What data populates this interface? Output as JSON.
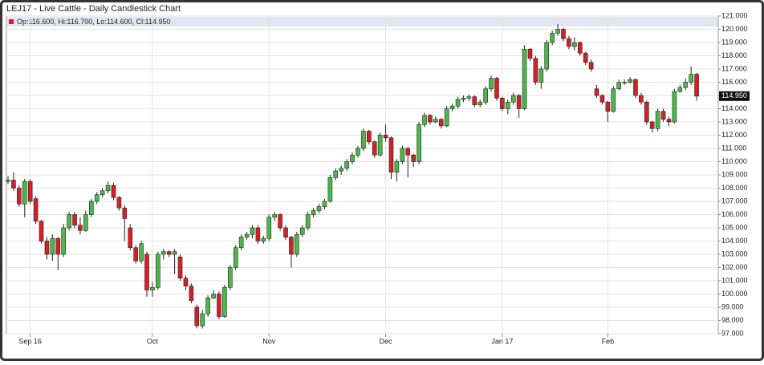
{
  "chart_data": {
    "type": "candlestick",
    "title": "LEJ17 - Live Cattle - Daily Candlestick Chart",
    "legend_text": "Op:116.600, Hi:116.700, Lo:114.600, Cl:114.950",
    "last_label": "114.950",
    "up_color": "#4cb848",
    "down_color": "#d62027",
    "grid": true,
    "categories": [
      null,
      null,
      null,
      null,
      "Sep 16",
      null,
      null,
      null,
      null,
      null,
      null,
      null,
      null,
      null,
      null,
      null,
      null,
      null,
      null,
      null,
      null,
      null,
      null,
      null,
      null,
      null,
      "Oct",
      null,
      null,
      null,
      null,
      null,
      null,
      null,
      null,
      null,
      null,
      null,
      null,
      null,
      null,
      null,
      null,
      null,
      null,
      null,
      null,
      "Nov",
      null,
      null,
      null,
      null,
      null,
      null,
      null,
      null,
      null,
      null,
      null,
      null,
      null,
      null,
      null,
      null,
      null,
      null,
      null,
      null,
      "Dec",
      null,
      null,
      null,
      null,
      null,
      null,
      null,
      null,
      null,
      null,
      null,
      null,
      null,
      null,
      null,
      null,
      null,
      null,
      null,
      null,
      "Jan 17",
      null,
      null,
      null,
      null,
      null,
      null,
      null,
      null,
      null,
      null,
      null,
      null,
      null,
      null,
      null,
      null,
      null,
      null,
      "Feb",
      null,
      null,
      null,
      null,
      null,
      null,
      null,
      null,
      null,
      null,
      null,
      null,
      null,
      null,
      null,
      null
    ],
    "open": [
      108.5,
      108.6,
      108.0,
      106.8,
      108.5,
      107.2,
      105.5,
      104.0,
      103.0,
      104.2,
      103.0,
      105.0,
      106.0,
      105.2,
      104.8,
      106.0,
      107.0,
      107.5,
      107.8,
      108.2,
      107.3,
      106.5,
      105.0,
      103.5,
      102.5,
      103.0,
      100.3,
      100.5,
      103.0,
      103.2,
      103.0,
      102.8,
      101.2,
      100.6,
      99.0,
      97.6,
      98.5,
      99.7,
      100.0,
      98.3,
      100.5,
      102.0,
      103.5,
      104.3,
      104.5,
      105.0,
      104.0,
      104.2,
      105.8,
      106.0,
      105.0,
      104.3,
      103.0,
      104.5,
      105.0,
      106.0,
      106.3,
      106.6,
      107.0,
      108.8,
      109.3,
      109.5,
      110.0,
      110.5,
      111.0,
      112.3,
      111.5,
      110.5,
      112.0,
      111.8,
      109.2,
      110.0,
      111.0,
      110.5,
      110.0,
      112.8,
      113.5,
      113.0,
      113.2,
      112.7,
      114.0,
      114.2,
      114.7,
      114.8,
      114.9,
      114.3,
      114.5,
      115.5,
      116.3,
      114.8,
      114.0,
      114.5,
      115.0,
      114.0,
      118.5,
      117.8,
      116.0,
      117.0,
      119.0,
      119.7,
      120.0,
      119.3,
      118.7,
      119.0,
      118.2,
      117.5,
      115.5,
      115.0,
      114.5,
      113.8,
      115.5,
      116.0,
      116.0,
      116.2,
      115.0,
      114.5,
      113.0,
      112.5,
      113.8,
      113.2,
      113.0,
      115.3,
      115.6,
      116.0,
      116.6
    ],
    "high": [
      108.9,
      109.2,
      108.2,
      108.7,
      108.7,
      107.4,
      105.6,
      104.3,
      104.5,
      104.3,
      105.3,
      106.2,
      106.2,
      105.8,
      106.3,
      107.2,
      107.7,
      108.0,
      108.5,
      108.4,
      107.4,
      106.7,
      105.3,
      103.7,
      104.0,
      103.2,
      100.9,
      103.2,
      103.4,
      103.3,
      103.4,
      103.0,
      101.4,
      100.8,
      99.2,
      98.8,
      99.9,
      100.3,
      100.2,
      100.7,
      102.2,
      103.7,
      104.5,
      104.7,
      105.2,
      105.2,
      104.4,
      106.0,
      106.2,
      106.1,
      105.2,
      104.4,
      104.7,
      105.2,
      106.2,
      106.5,
      106.8,
      107.2,
      109.0,
      109.5,
      109.7,
      110.2,
      110.7,
      111.2,
      112.5,
      112.4,
      111.6,
      112.2,
      112.8,
      111.9,
      110.2,
      111.2,
      111.1,
      110.6,
      113.0,
      113.7,
      113.6,
      113.4,
      113.3,
      114.2,
      114.4,
      114.9,
      115.0,
      115.1,
      115.0,
      114.7,
      115.7,
      116.5,
      116.4,
      114.9,
      114.7,
      115.2,
      115.1,
      118.8,
      118.6,
      118.0,
      117.2,
      119.2,
      119.9,
      120.4,
      120.1,
      119.5,
      119.4,
      119.1,
      118.3,
      117.7,
      115.8,
      115.1,
      114.6,
      115.7,
      116.2,
      116.2,
      116.4,
      116.3,
      115.2,
      114.6,
      113.1,
      114.0,
      114.0,
      113.4,
      115.5,
      115.8,
      116.3,
      117.2,
      116.7
    ],
    "low": [
      108.3,
      107.8,
      106.6,
      105.8,
      106.8,
      105.3,
      103.8,
      102.6,
      102.5,
      101.8,
      102.8,
      104.8,
      105.0,
      104.5,
      104.7,
      105.8,
      106.8,
      107.3,
      107.6,
      107.1,
      106.3,
      104.0,
      103.3,
      102.3,
      102.3,
      99.8,
      99.8,
      100.3,
      102.6,
      102.8,
      101.5,
      101.0,
      100.3,
      99.3,
      97.4,
      97.4,
      98.3,
      99.6,
      98.1,
      98.2,
      100.3,
      101.8,
      103.3,
      104.1,
      104.2,
      103.8,
      103.8,
      104.0,
      105.5,
      104.8,
      104.1,
      102.0,
      102.8,
      104.3,
      104.8,
      105.8,
      106.1,
      106.4,
      106.9,
      108.6,
      109.0,
      109.3,
      109.8,
      110.3,
      110.8,
      111.3,
      110.3,
      110.4,
      111.5,
      108.7,
      108.5,
      109.8,
      108.8,
      109.6,
      109.8,
      112.6,
      112.8,
      112.9,
      112.5,
      112.6,
      113.8,
      114.0,
      114.5,
      114.6,
      114.1,
      114.1,
      114.3,
      115.3,
      114.6,
      113.8,
      113.6,
      114.3,
      113.3,
      113.9,
      117.6,
      115.8,
      115.5,
      116.8,
      118.8,
      119.5,
      119.1,
      118.5,
      118.4,
      118.0,
      117.3,
      116.8,
      114.8,
      114.3,
      113.0,
      113.7,
      115.4,
      115.8,
      115.9,
      114.8,
      114.3,
      112.8,
      112.2,
      112.3,
      113.0,
      112.7,
      112.9,
      115.2,
      115.4,
      115.8,
      114.6
    ],
    "close": [
      108.6,
      108.0,
      106.8,
      108.5,
      107.0,
      105.5,
      104.0,
      103.0,
      104.2,
      103.0,
      105.0,
      106.0,
      105.2,
      104.8,
      106.0,
      107.0,
      107.5,
      107.8,
      108.2,
      107.3,
      106.5,
      105.7,
      103.5,
      102.5,
      103.8,
      100.3,
      100.5,
      103.0,
      103.2,
      103.0,
      103.2,
      101.2,
      100.6,
      99.5,
      97.6,
      98.5,
      99.7,
      100.0,
      98.3,
      100.5,
      102.0,
      103.5,
      104.3,
      104.5,
      105.0,
      104.0,
      104.2,
      105.8,
      106.0,
      105.0,
      104.3,
      103.0,
      104.5,
      105.0,
      106.0,
      106.3,
      106.6,
      107.0,
      108.8,
      109.3,
      109.5,
      110.0,
      110.5,
      111.0,
      112.3,
      111.5,
      110.5,
      112.0,
      111.8,
      109.2,
      110.0,
      111.0,
      110.5,
      110.0,
      112.8,
      113.5,
      113.0,
      113.2,
      112.7,
      114.0,
      114.2,
      114.7,
      114.8,
      114.9,
      114.3,
      114.5,
      115.5,
      116.3,
      114.8,
      114.0,
      114.5,
      115.0,
      114.0,
      118.5,
      117.8,
      116.0,
      117.0,
      119.0,
      119.7,
      120.0,
      119.3,
      118.7,
      119.0,
      118.2,
      117.5,
      117.0,
      115.0,
      114.5,
      113.8,
      115.5,
      116.0,
      116.0,
      116.2,
      115.0,
      114.5,
      113.0,
      112.5,
      113.8,
      113.2,
      113.0,
      115.3,
      115.6,
      116.0,
      116.6,
      114.95
    ],
    "ylim": [
      97,
      121
    ],
    "yticks": [
      {
        "value": 97,
        "label": "97.000"
      },
      {
        "value": 98,
        "label": "98.000"
      },
      {
        "value": 99,
        "label": "99.000"
      },
      {
        "value": 100,
        "label": "100.000"
      },
      {
        "value": 101,
        "label": "101.000"
      },
      {
        "value": 102,
        "label": "102.000"
      },
      {
        "value": 103,
        "label": "103.000"
      },
      {
        "value": 104,
        "label": "104.000"
      },
      {
        "value": 105,
        "label": "105.000"
      },
      {
        "value": 106,
        "label": "106.000"
      },
      {
        "value": 107,
        "label": "107.000"
      },
      {
        "value": 108,
        "label": "108.000"
      },
      {
        "value": 109,
        "label": "109.000"
      },
      {
        "value": 110,
        "label": "110.000"
      },
      {
        "value": 111,
        "label": "111.000"
      },
      {
        "value": 112,
        "label": "112.000"
      },
      {
        "value": 113,
        "label": "113.000"
      },
      {
        "value": 114,
        "label": "114.000"
      },
      {
        "value": 115,
        "label": "115.000"
      },
      {
        "value": 116,
        "label": "116.000"
      },
      {
        "value": 117,
        "label": "117.000"
      },
      {
        "value": 118,
        "label": "118.000"
      },
      {
        "value": 119,
        "label": "119.000"
      },
      {
        "value": 120,
        "label": "120.000"
      },
      {
        "value": 121,
        "label": "121.000"
      }
    ]
  }
}
